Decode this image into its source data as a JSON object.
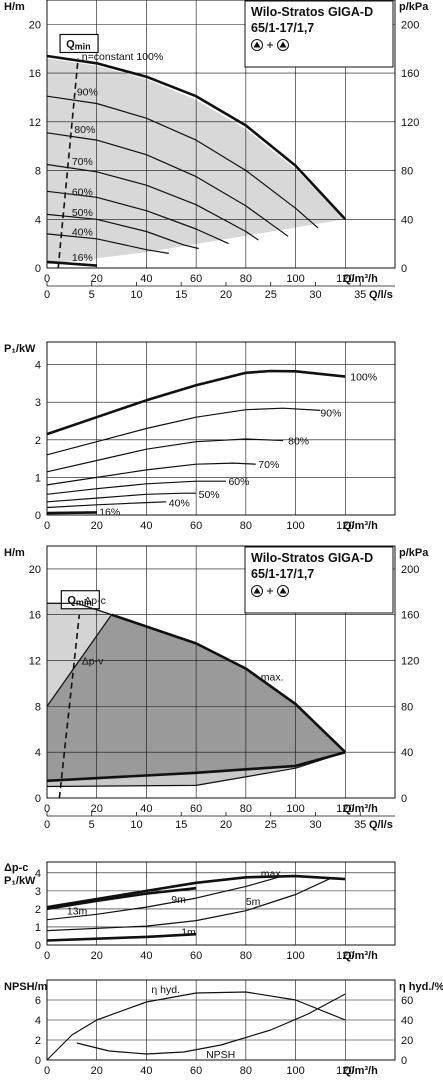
{
  "chart_data": [
    {
      "id": "c1",
      "type": "line",
      "title": [
        "Wilo-Stratos GIGA-D",
        "65/1-17/1,7"
      ],
      "ylabel": "H/m",
      "ylabel_right": "p/kPa",
      "xlabel": "Q/m³/h",
      "xlabel2": "Q/l/s",
      "xlim": [
        0,
        140
      ],
      "ylim": [
        0,
        22
      ],
      "yticks": [
        0,
        4,
        8,
        12,
        16,
        20
      ],
      "yticks_right": [
        0,
        40,
        80,
        120,
        160,
        200
      ],
      "xticks": [
        0,
        20,
        40,
        60,
        80,
        100,
        120
      ],
      "xticks2": [
        0,
        5,
        10,
        15,
        20,
        25,
        30,
        35
      ],
      "qmin_label": "Q",
      "qmin_sub": "min",
      "qmin_line": [
        [
          4.5,
          0
        ],
        [
          12.5,
          17.2
        ]
      ],
      "shaded_region": [
        [
          0,
          17.2
        ],
        [
          20,
          16.6
        ],
        [
          40,
          15.5
        ],
        [
          60,
          13.8
        ],
        [
          80,
          11.4
        ],
        [
          100,
          8.1
        ],
        [
          120,
          4
        ],
        [
          40,
          1.3
        ],
        [
          0,
          0.3
        ]
      ],
      "series": [
        {
          "name": "n=constant 100%",
          "label": "n=constant 100%",
          "bold": true,
          "points": [
            [
              0,
              17.4
            ],
            [
              20,
              16.8
            ],
            [
              40,
              15.7
            ],
            [
              60,
              14.1
            ],
            [
              80,
              11.7
            ],
            [
              100,
              8.4
            ],
            [
              120,
              4.0
            ]
          ],
          "label_at": [
            14,
            17.4
          ]
        },
        {
          "name": "90%",
          "label": "90%",
          "points": [
            [
              0,
              14.1
            ],
            [
              20,
              13.5
            ],
            [
              40,
              12.3
            ],
            [
              60,
              10.5
            ],
            [
              80,
              8.0
            ],
            [
              100,
              4.9
            ],
            [
              109,
              3.3
            ]
          ],
          "label_at": [
            12,
            14.5
          ]
        },
        {
          "name": "80%",
          "label": "80%",
          "points": [
            [
              0,
              11.1
            ],
            [
              20,
              10.5
            ],
            [
              40,
              9.3
            ],
            [
              60,
              7.5
            ],
            [
              80,
              5.1
            ],
            [
              97,
              2.6
            ]
          ],
          "label_at": [
            11,
            11.4
          ]
        },
        {
          "name": "70%",
          "label": "70%",
          "points": [
            [
              0,
              8.5
            ],
            [
              20,
              7.9
            ],
            [
              40,
              6.8
            ],
            [
              60,
              5.2
            ],
            [
              80,
              3.0
            ],
            [
              85,
              2.3
            ]
          ],
          "label_at": [
            10,
            8.8
          ]
        },
        {
          "name": "60%",
          "label": "60%",
          "points": [
            [
              0,
              6.3
            ],
            [
              20,
              5.8
            ],
            [
              40,
              4.7
            ],
            [
              60,
              3.2
            ],
            [
              73,
              2.0
            ]
          ],
          "label_at": [
            10,
            6.3
          ]
        },
        {
          "name": "50%",
          "label": "50%",
          "points": [
            [
              0,
              4.4
            ],
            [
              20,
              4.0
            ],
            [
              40,
              3.0
            ],
            [
              55,
              1.9
            ],
            [
              61,
              1.6
            ]
          ],
          "label_at": [
            10,
            4.6
          ]
        },
        {
          "name": "40%",
          "label": "40%",
          "points": [
            [
              0,
              2.8
            ],
            [
              20,
              2.4
            ],
            [
              40,
              1.5
            ],
            [
              49,
              1.2
            ]
          ],
          "label_at": [
            10,
            3.0
          ]
        },
        {
          "name": "16%",
          "label": "16%",
          "bold": true,
          "points": [
            [
              0,
              0.5
            ],
            [
              20,
              0.2
            ]
          ],
          "label_at": [
            10,
            0.9
          ]
        }
      ]
    },
    {
      "id": "c2",
      "type": "line",
      "ylabel": "P₁/kW",
      "xlabel": "Q/m³/h",
      "xlim": [
        0,
        140
      ],
      "ylim": [
        0,
        4.6
      ],
      "yticks": [
        0,
        1,
        2,
        3,
        4
      ],
      "xticks": [
        0,
        20,
        40,
        60,
        80,
        100,
        120
      ],
      "series": [
        {
          "name": "100%",
          "label": "100%",
          "bold": true,
          "points": [
            [
              0,
              2.15
            ],
            [
              20,
              2.6
            ],
            [
              40,
              3.05
            ],
            [
              60,
              3.45
            ],
            [
              80,
              3.78
            ],
            [
              90,
              3.83
            ],
            [
              100,
              3.82
            ],
            [
              120,
              3.68
            ]
          ],
          "label_at": [
            122,
            3.68
          ]
        },
        {
          "name": "90%",
          "label": "90%",
          "points": [
            [
              0,
              1.6
            ],
            [
              20,
              1.95
            ],
            [
              40,
              2.3
            ],
            [
              60,
              2.6
            ],
            [
              80,
              2.8
            ],
            [
              95,
              2.84
            ],
            [
              110,
              2.78
            ]
          ],
          "label_at": [
            110,
            2.72
          ]
        },
        {
          "name": "80%",
          "label": "80%",
          "points": [
            [
              0,
              1.15
            ],
            [
              20,
              1.45
            ],
            [
              40,
              1.75
            ],
            [
              60,
              1.95
            ],
            [
              80,
              2.02
            ],
            [
              95,
              1.98
            ]
          ],
          "label_at": [
            97,
            1.98
          ]
        },
        {
          "name": "70%",
          "label": "70%",
          "points": [
            [
              0,
              0.8
            ],
            [
              20,
              1.0
            ],
            [
              40,
              1.2
            ],
            [
              60,
              1.35
            ],
            [
              75,
              1.38
            ],
            [
              84,
              1.35
            ]
          ],
          "label_at": [
            85,
            1.35
          ]
        },
        {
          "name": "60%",
          "label": "60%",
          "points": [
            [
              0,
              0.55
            ],
            [
              20,
              0.7
            ],
            [
              40,
              0.83
            ],
            [
              60,
              0.9
            ],
            [
              72,
              0.9
            ]
          ],
          "label_at": [
            73,
            0.9
          ]
        },
        {
          "name": "50%",
          "label": "50%",
          "points": [
            [
              0,
              0.35
            ],
            [
              20,
              0.45
            ],
            [
              40,
              0.55
            ],
            [
              55,
              0.58
            ],
            [
              60,
              0.58
            ]
          ],
          "label_at": [
            61,
            0.56
          ]
        },
        {
          "name": "40%",
          "label": "40%",
          "points": [
            [
              0,
              0.2
            ],
            [
              20,
              0.27
            ],
            [
              40,
              0.33
            ],
            [
              48,
              0.35
            ]
          ],
          "label_at": [
            49,
            0.33
          ]
        },
        {
          "name": "16%",
          "label": "16%",
          "bold": true,
          "points": [
            [
              0,
              0.05
            ],
            [
              20,
              0.07
            ]
          ],
          "label_at": [
            21,
            0.09
          ]
        }
      ]
    },
    {
      "id": "c3",
      "type": "area",
      "title": [
        "Wilo-Stratos GIGA-D",
        "65/1-17/1,7"
      ],
      "ylabel": "H/m",
      "ylabel_right": "p/kPa",
      "xlabel": "Q/m³/h",
      "xlabel2": "Q/l/s",
      "xlim": [
        0,
        140
      ],
      "ylim": [
        0,
        22
      ],
      "yticks": [
        0,
        4,
        8,
        12,
        16,
        20
      ],
      "yticks_right": [
        0,
        40,
        80,
        120,
        160,
        200
      ],
      "xticks": [
        0,
        20,
        40,
        60,
        80,
        100,
        120
      ],
      "xticks2": [
        0,
        5,
        10,
        15,
        20,
        25,
        30,
        35
      ],
      "qmin_label": "Q",
      "qmin_sub": "min",
      "qmin_line": [
        [
          5,
          0
        ],
        [
          13,
          16
        ]
      ],
      "light_region": [
        [
          0,
          17
        ],
        [
          12,
          17
        ],
        [
          26,
          16
        ],
        [
          0,
          8
        ]
      ],
      "dark_region": [
        [
          26,
          16
        ],
        [
          60,
          13.5
        ],
        [
          80,
          11.3
        ],
        [
          100,
          8.2
        ],
        [
          120,
          4
        ],
        [
          100,
          2.8
        ],
        [
          60,
          2.2
        ],
        [
          0,
          1.5
        ],
        [
          0,
          8
        ]
      ],
      "lower_region": [
        [
          0,
          1.5
        ],
        [
          60,
          2.2
        ],
        [
          100,
          2.8
        ],
        [
          120,
          4
        ],
        [
          100,
          2.6
        ],
        [
          60,
          1.1
        ],
        [
          0,
          1.0
        ]
      ],
      "series": [
        {
          "name": "Δp-c",
          "label": "Δp-c",
          "points": [
            [
              0,
              17
            ],
            [
              12,
              17
            ],
            [
              26,
              16
            ]
          ],
          "label_at": [
            15,
            17.3
          ]
        },
        {
          "name": "Δp-v",
          "label": "Δp-v",
          "points": [
            [
              0,
              8
            ],
            [
              26,
              16
            ]
          ],
          "label_at": [
            14,
            12
          ]
        },
        {
          "name": "max.",
          "label": "max.",
          "bold": true,
          "points": [
            [
              26,
              16
            ],
            [
              60,
              13.5
            ],
            [
              80,
              11.3
            ],
            [
              100,
              8.2
            ],
            [
              120,
              4
            ]
          ],
          "label_at": [
            86,
            10.6
          ]
        },
        {
          "name": "min",
          "bold": true,
          "points": [
            [
              0,
              1.5
            ],
            [
              60,
              2.2
            ],
            [
              100,
              2.8
            ],
            [
              120,
              4
            ]
          ]
        },
        {
          "name": "min2",
          "points": [
            [
              0,
              1.0
            ],
            [
              60,
              1.1
            ],
            [
              100,
              2.6
            ],
            [
              120,
              4
            ]
          ]
        }
      ]
    },
    {
      "id": "c4",
      "type": "line",
      "ylabel_line1": "Δp-c",
      "ylabel": "P₁/kW",
      "xlabel": "Q/m³/h",
      "xlim": [
        0,
        140
      ],
      "ylim": [
        0,
        4.6
      ],
      "yticks": [
        0,
        1,
        2,
        3,
        4
      ],
      "xticks": [
        0,
        20,
        40,
        60,
        80,
        100,
        120
      ],
      "series": [
        {
          "name": "max.",
          "label": "max.",
          "bold": true,
          "points": [
            [
              0,
              2.1
            ],
            [
              20,
              2.55
            ],
            [
              40,
              3.0
            ],
            [
              60,
              3.45
            ],
            [
              80,
              3.75
            ],
            [
              100,
              3.82
            ],
            [
              120,
              3.65
            ]
          ],
          "label_at": [
            86,
            4.0
          ]
        },
        {
          "name": "13m",
          "label": "13m",
          "bold": true,
          "points": [
            [
              0,
              2.0
            ],
            [
              20,
              2.45
            ],
            [
              40,
              2.85
            ],
            [
              60,
              3.15
            ]
          ],
          "label_at": [
            8,
            1.9
          ]
        },
        {
          "name": "9m",
          "label": "9m",
          "points": [
            [
              0,
              1.4
            ],
            [
              20,
              1.7
            ],
            [
              40,
              2.1
            ],
            [
              60,
              2.6
            ],
            [
              80,
              3.25
            ],
            [
              93,
              3.75
            ]
          ],
          "label_at": [
            50,
            2.55
          ]
        },
        {
          "name": "5m",
          "label": "5m",
          "points": [
            [
              0,
              0.8
            ],
            [
              40,
              1.05
            ],
            [
              60,
              1.35
            ],
            [
              80,
              1.9
            ],
            [
              100,
              2.8
            ],
            [
              115,
              3.75
            ]
          ],
          "label_at": [
            80,
            2.45
          ]
        },
        {
          "name": "1m",
          "label": "1m",
          "bold": true,
          "points": [
            [
              0,
              0.25
            ],
            [
              20,
              0.35
            ],
            [
              40,
              0.45
            ],
            [
              60,
              0.6
            ]
          ],
          "label_at": [
            54,
            0.75
          ]
        }
      ]
    },
    {
      "id": "c5",
      "type": "line",
      "ylabel": "NPSH/m",
      "ylabel_right": "η hyd./%",
      "xlabel": "Q/m³/h",
      "xlim": [
        0,
        140
      ],
      "ylim": [
        0,
        8
      ],
      "ylim_right": [
        0,
        80
      ],
      "yticks": [
        0,
        2,
        4,
        6
      ],
      "yticks_right": [
        0,
        20,
        40,
        60
      ],
      "xticks": [
        0,
        20,
        40,
        60,
        80,
        100,
        120
      ],
      "series": [
        {
          "name": "η hyd.",
          "label": "η hyd.",
          "axis": "right",
          "points": [
            [
              0,
              0
            ],
            [
              10,
              25
            ],
            [
              20,
              40
            ],
            [
              40,
              58
            ],
            [
              60,
              67
            ],
            [
              80,
              68
            ],
            [
              100,
              60
            ],
            [
              120,
              40
            ]
          ],
          "label_at": [
            42,
            71
          ]
        },
        {
          "name": "NPSH",
          "label": "NPSH",
          "axis": "left",
          "points": [
            [
              12,
              1.7
            ],
            [
              25,
              0.9
            ],
            [
              40,
              0.6
            ],
            [
              55,
              0.8
            ],
            [
              70,
              1.5
            ],
            [
              90,
              3.0
            ],
            [
              105,
              4.6
            ],
            [
              120,
              6.6
            ]
          ],
          "label_at": [
            64,
            0.6
          ]
        }
      ]
    }
  ]
}
